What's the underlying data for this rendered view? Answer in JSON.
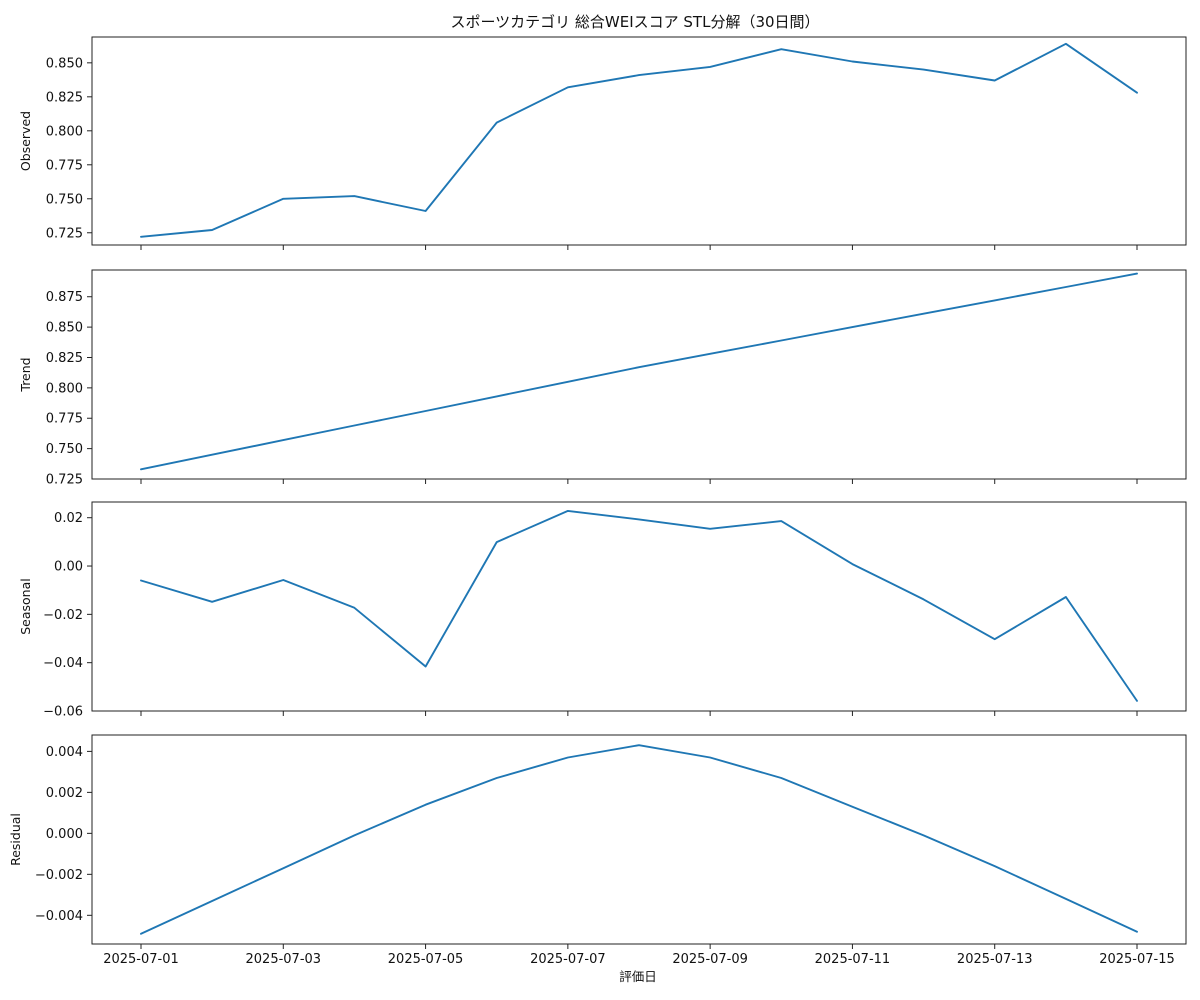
{
  "chart_data": {
    "type": "line",
    "title": "スポーツカテゴリ 総合WEIスコア STL分解（30日間）",
    "xlabel": "評価日",
    "color": "#1f77b4",
    "grid": false,
    "x": [
      "2025-07-01",
      "2025-07-02",
      "2025-07-03",
      "2025-07-04",
      "2025-07-05",
      "2025-07-06",
      "2025-07-07",
      "2025-07-08",
      "2025-07-09",
      "2025-07-10",
      "2025-07-11",
      "2025-07-12",
      "2025-07-13",
      "2025-07-14",
      "2025-07-15"
    ],
    "x_tick_labels": [
      "2025-07-01",
      "2025-07-03",
      "2025-07-05",
      "2025-07-07",
      "2025-07-09",
      "2025-07-11",
      "2025-07-13",
      "2025-07-15"
    ],
    "panels": [
      {
        "ylabel": "Observed",
        "ylim": [
          0.716,
          0.869
        ],
        "y_ticks": [
          0.725,
          0.75,
          0.775,
          0.8,
          0.825,
          0.85
        ],
        "y_tick_labels": [
          "0.725",
          "0.750",
          "0.775",
          "0.800",
          "0.825",
          "0.850"
        ],
        "values": [
          0.722,
          0.727,
          0.75,
          0.752,
          0.741,
          0.806,
          0.832,
          0.841,
          0.847,
          0.86,
          0.851,
          0.845,
          0.837,
          0.864,
          0.828
        ]
      },
      {
        "ylabel": "Trend",
        "ylim": [
          0.725,
          0.897
        ],
        "y_ticks": [
          0.75,
          0.775,
          0.8,
          0.825,
          0.85,
          0.875
        ],
        "y_tick_labels": [
          "0.750",
          "0.775",
          "0.800",
          "0.825",
          "0.850",
          "0.875"
        ],
        "extra_bottom_tick_label": "0.725",
        "values": [
          0.733,
          0.745,
          0.757,
          0.769,
          0.781,
          0.793,
          0.805,
          0.817,
          0.828,
          0.839,
          0.85,
          0.861,
          0.872,
          0.883,
          0.894
        ]
      },
      {
        "ylabel": "Seasonal",
        "ylim": [
          -0.06,
          0.0265
        ],
        "y_ticks": [
          -0.04,
          -0.02,
          0.0,
          0.02
        ],
        "y_tick_labels": [
          "−0.04",
          "−0.02",
          "0.00",
          "0.02"
        ],
        "extra_bottom_tick_label": "−0.06",
        "values": [
          -0.006,
          -0.0148,
          -0.0058,
          -0.0173,
          -0.0416,
          0.0099,
          0.0228,
          0.0193,
          0.0154,
          0.0186,
          0.0008,
          -0.0138,
          -0.0303,
          -0.0128,
          -0.0558
        ]
      },
      {
        "ylabel": "Residual",
        "ylim": [
          -0.0054,
          0.0048
        ],
        "y_ticks": [
          -0.004,
          -0.002,
          0.0,
          0.002,
          0.004
        ],
        "y_tick_labels": [
          "−0.004",
          "−0.002",
          "0.000",
          "0.002",
          "0.004"
        ],
        "values": [
          -0.0049,
          -0.0033,
          -0.0017,
          -0.0001,
          0.0014,
          0.0027,
          0.0037,
          0.0043,
          0.0037,
          0.0027,
          0.0013,
          -0.0001,
          -0.0016,
          -0.0032,
          -0.0048
        ]
      }
    ]
  }
}
